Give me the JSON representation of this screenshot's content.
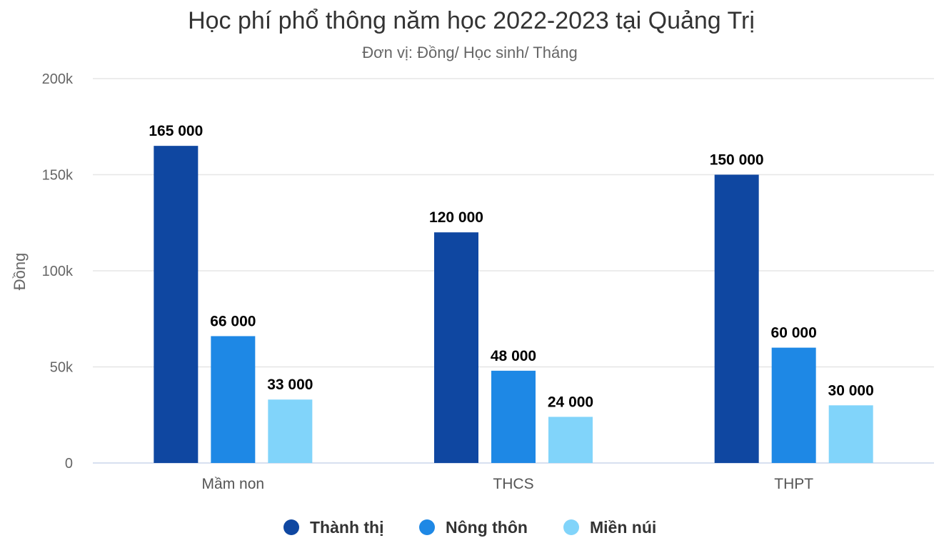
{
  "chart_data": {
    "type": "bar",
    "title": "Học phí phổ thông năm học 2022-2023 tại Quảng Trị",
    "subtitle": "Đơn vị: Đồng/ Học sinh/ Tháng",
    "ylabel": "Đồng",
    "xlabel": "",
    "ylim": [
      0,
      200000
    ],
    "yticks": [
      0,
      50000,
      100000,
      150000,
      200000
    ],
    "ytick_labels": [
      "0",
      "50k",
      "100k",
      "150k",
      "200k"
    ],
    "categories": [
      "Mầm non",
      "THCS",
      "THPT"
    ],
    "series": [
      {
        "name": "Thành thị",
        "color": "#0f47a1",
        "values": [
          165000,
          120000,
          150000
        ],
        "labels": [
          "165 000",
          "120 000",
          "150 000"
        ]
      },
      {
        "name": "Nông thôn",
        "color": "#1e88e5",
        "values": [
          66000,
          48000,
          60000
        ],
        "labels": [
          "66 000",
          "48 000",
          "60 000"
        ]
      },
      {
        "name": "Miền núi",
        "color": "#81d4fa",
        "values": [
          33000,
          24000,
          30000
        ],
        "labels": [
          "33 000",
          "24 000",
          "30 000"
        ]
      }
    ],
    "grid": true,
    "legend_position": "bottom"
  }
}
